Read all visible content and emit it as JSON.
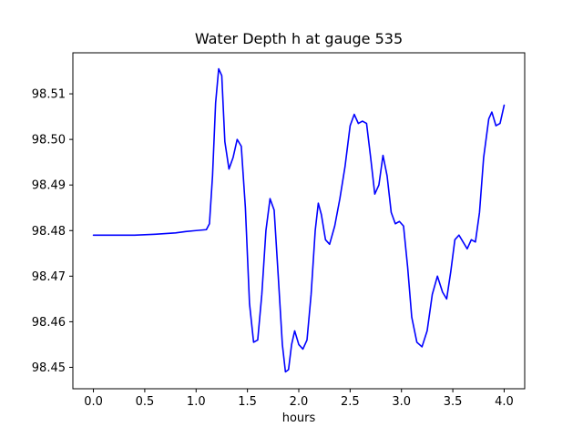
{
  "chart_data": {
    "type": "line",
    "title": "Water Depth h at gauge 535",
    "xlabel": "hours",
    "ylabel": "",
    "line_color": "#0000ff",
    "xlim": [
      -0.2,
      4.2
    ],
    "ylim": [
      98.4453,
      98.519
    ],
    "xticks": [
      0.0,
      0.5,
      1.0,
      1.5,
      2.0,
      2.5,
      3.0,
      3.5,
      4.0
    ],
    "yticks": [
      98.45,
      98.46,
      98.47,
      98.48,
      98.49,
      98.5,
      98.51
    ],
    "grid": false,
    "legend": "none",
    "series": [
      {
        "name": "water-depth-h",
        "points": [
          [
            0.0,
            98.479
          ],
          [
            0.2,
            98.479
          ],
          [
            0.4,
            98.479
          ],
          [
            0.6,
            98.4792
          ],
          [
            0.8,
            98.4795
          ],
          [
            0.9,
            98.4798
          ],
          [
            1.0,
            98.48
          ],
          [
            1.1,
            98.4802
          ],
          [
            1.13,
            98.4815
          ],
          [
            1.16,
            98.492
          ],
          [
            1.19,
            98.508
          ],
          [
            1.22,
            98.5155
          ],
          [
            1.25,
            98.514
          ],
          [
            1.28,
            98.4995
          ],
          [
            1.32,
            98.4935
          ],
          [
            1.36,
            98.496
          ],
          [
            1.4,
            98.5
          ],
          [
            1.44,
            98.4985
          ],
          [
            1.48,
            98.485
          ],
          [
            1.52,
            98.464
          ],
          [
            1.56,
            98.4555
          ],
          [
            1.6,
            98.456
          ],
          [
            1.64,
            98.466
          ],
          [
            1.68,
            98.48
          ],
          [
            1.72,
            98.487
          ],
          [
            1.76,
            98.4845
          ],
          [
            1.8,
            98.47
          ],
          [
            1.84,
            98.455
          ],
          [
            1.87,
            98.449
          ],
          [
            1.9,
            98.4495
          ],
          [
            1.93,
            98.455
          ],
          [
            1.96,
            98.458
          ],
          [
            2.0,
            98.455
          ],
          [
            2.04,
            98.454
          ],
          [
            2.08,
            98.456
          ],
          [
            2.12,
            98.466
          ],
          [
            2.16,
            98.48
          ],
          [
            2.19,
            98.486
          ],
          [
            2.22,
            98.4835
          ],
          [
            2.26,
            98.478
          ],
          [
            2.3,
            98.477
          ],
          [
            2.35,
            98.481
          ],
          [
            2.4,
            98.487
          ],
          [
            2.45,
            98.494
          ],
          [
            2.5,
            98.503
          ],
          [
            2.54,
            98.5055
          ],
          [
            2.58,
            98.5035
          ],
          [
            2.62,
            98.504
          ],
          [
            2.66,
            98.5035
          ],
          [
            2.7,
            98.496
          ],
          [
            2.74,
            98.488
          ],
          [
            2.78,
            98.49
          ],
          [
            2.82,
            98.4965
          ],
          [
            2.86,
            98.492
          ],
          [
            2.9,
            98.484
          ],
          [
            2.94,
            98.4815
          ],
          [
            2.98,
            98.482
          ],
          [
            3.02,
            98.481
          ],
          [
            3.06,
            98.472
          ],
          [
            3.1,
            98.461
          ],
          [
            3.15,
            98.4555
          ],
          [
            3.2,
            98.4545
          ],
          [
            3.25,
            98.458
          ],
          [
            3.3,
            98.466
          ],
          [
            3.35,
            98.47
          ],
          [
            3.4,
            98.4665
          ],
          [
            3.44,
            98.465
          ],
          [
            3.48,
            98.471
          ],
          [
            3.52,
            98.478
          ],
          [
            3.56,
            98.479
          ],
          [
            3.6,
            98.4775
          ],
          [
            3.64,
            98.476
          ],
          [
            3.68,
            98.478
          ],
          [
            3.72,
            98.4775
          ],
          [
            3.76,
            98.484
          ],
          [
            3.8,
            98.496
          ],
          [
            3.85,
            98.5045
          ],
          [
            3.88,
            98.506
          ],
          [
            3.92,
            98.503
          ],
          [
            3.96,
            98.5035
          ],
          [
            4.0,
            98.5075
          ]
        ]
      }
    ]
  },
  "layout_text": {
    "title": "Water Depth h at gauge 535",
    "xlabel": "hours"
  }
}
